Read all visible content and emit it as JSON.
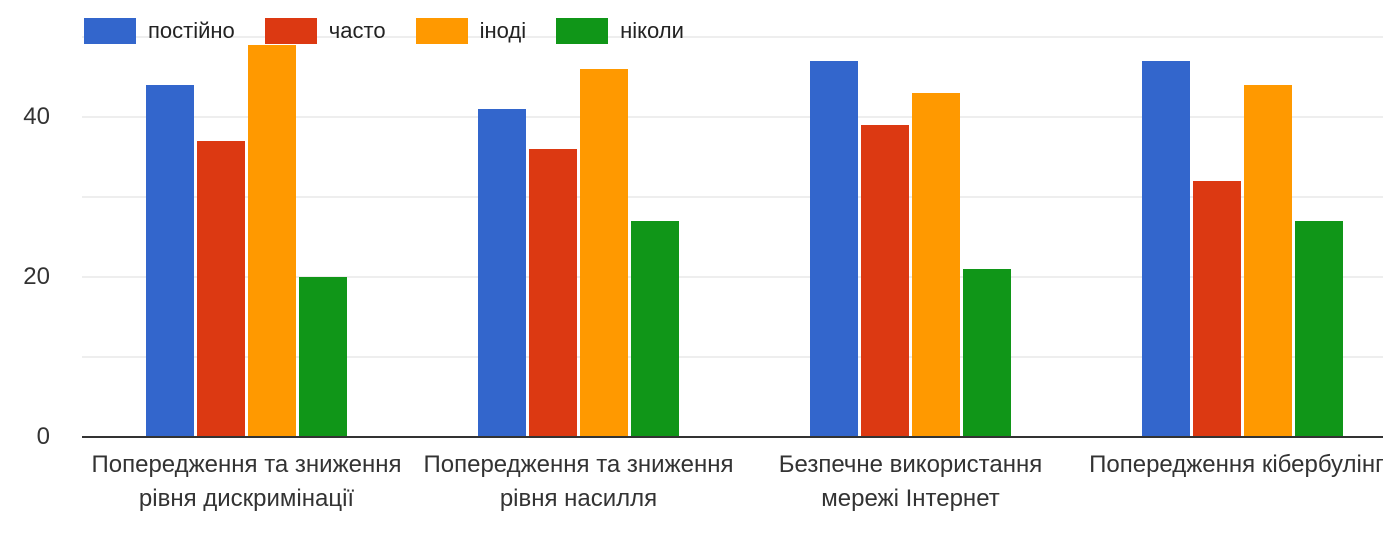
{
  "chart_data": {
    "type": "bar",
    "title": "",
    "xlabel": "",
    "ylabel": "",
    "ylim": [
      0,
      50
    ],
    "yticks": [
      0,
      20,
      40
    ],
    "grid": true,
    "legend_position": "top-left",
    "categories": [
      "Попередження та зниження рівня дискримінації",
      "Попередження та зниження рівня насилля",
      "Безпечне використання мережі Інтернет",
      "Попередження кібербулінгу"
    ],
    "series": [
      {
        "name": "постійно",
        "color": "#3366cc",
        "values": [
          44,
          41,
          47,
          47
        ]
      },
      {
        "name": "часто",
        "color": "#dc3912",
        "values": [
          37,
          36,
          39,
          32
        ]
      },
      {
        "name": "іноді",
        "color": "#ff9900",
        "values": [
          49,
          46,
          43,
          44
        ]
      },
      {
        "name": "ніколи",
        "color": "#109618",
        "values": [
          20,
          27,
          21,
          27
        ]
      }
    ]
  }
}
